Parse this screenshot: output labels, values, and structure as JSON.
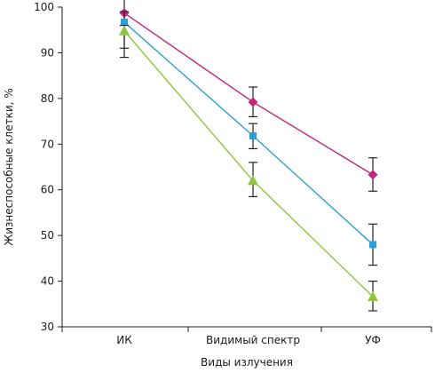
{
  "chart_data": {
    "type": "line",
    "xlabel": "Виды излучения",
    "ylabel": "Жизнеспособные клетки, %",
    "categories": [
      "ИК",
      "Видимый спектр",
      "УФ"
    ],
    "ylim": [
      30,
      100
    ],
    "yticks": [
      30,
      40,
      50,
      60,
      70,
      80,
      90,
      100
    ],
    "grid": false,
    "series": [
      {
        "color": "#c2267e",
        "marker": "diamond",
        "values": [
          98.7,
          79.2,
          63.3
        ],
        "errors": [
          [
            94.0,
            103.0
          ],
          [
            76.0,
            82.5
          ],
          [
            59.7,
            67.0
          ]
        ]
      },
      {
        "color": "#2a9fd6",
        "marker": "square",
        "values": [
          96.7,
          71.8,
          48.0
        ],
        "errors": [
          [
            91.0,
            99.0
          ],
          [
            69.0,
            74.5
          ],
          [
            43.5,
            52.5
          ]
        ]
      },
      {
        "color": "#8cc63f",
        "marker": "triangle",
        "values": [
          94.8,
          62.0,
          36.6
        ],
        "errors": [
          [
            89.0,
            96.0
          ],
          [
            58.5,
            66.0
          ],
          [
            33.5,
            40.0
          ]
        ]
      }
    ]
  }
}
